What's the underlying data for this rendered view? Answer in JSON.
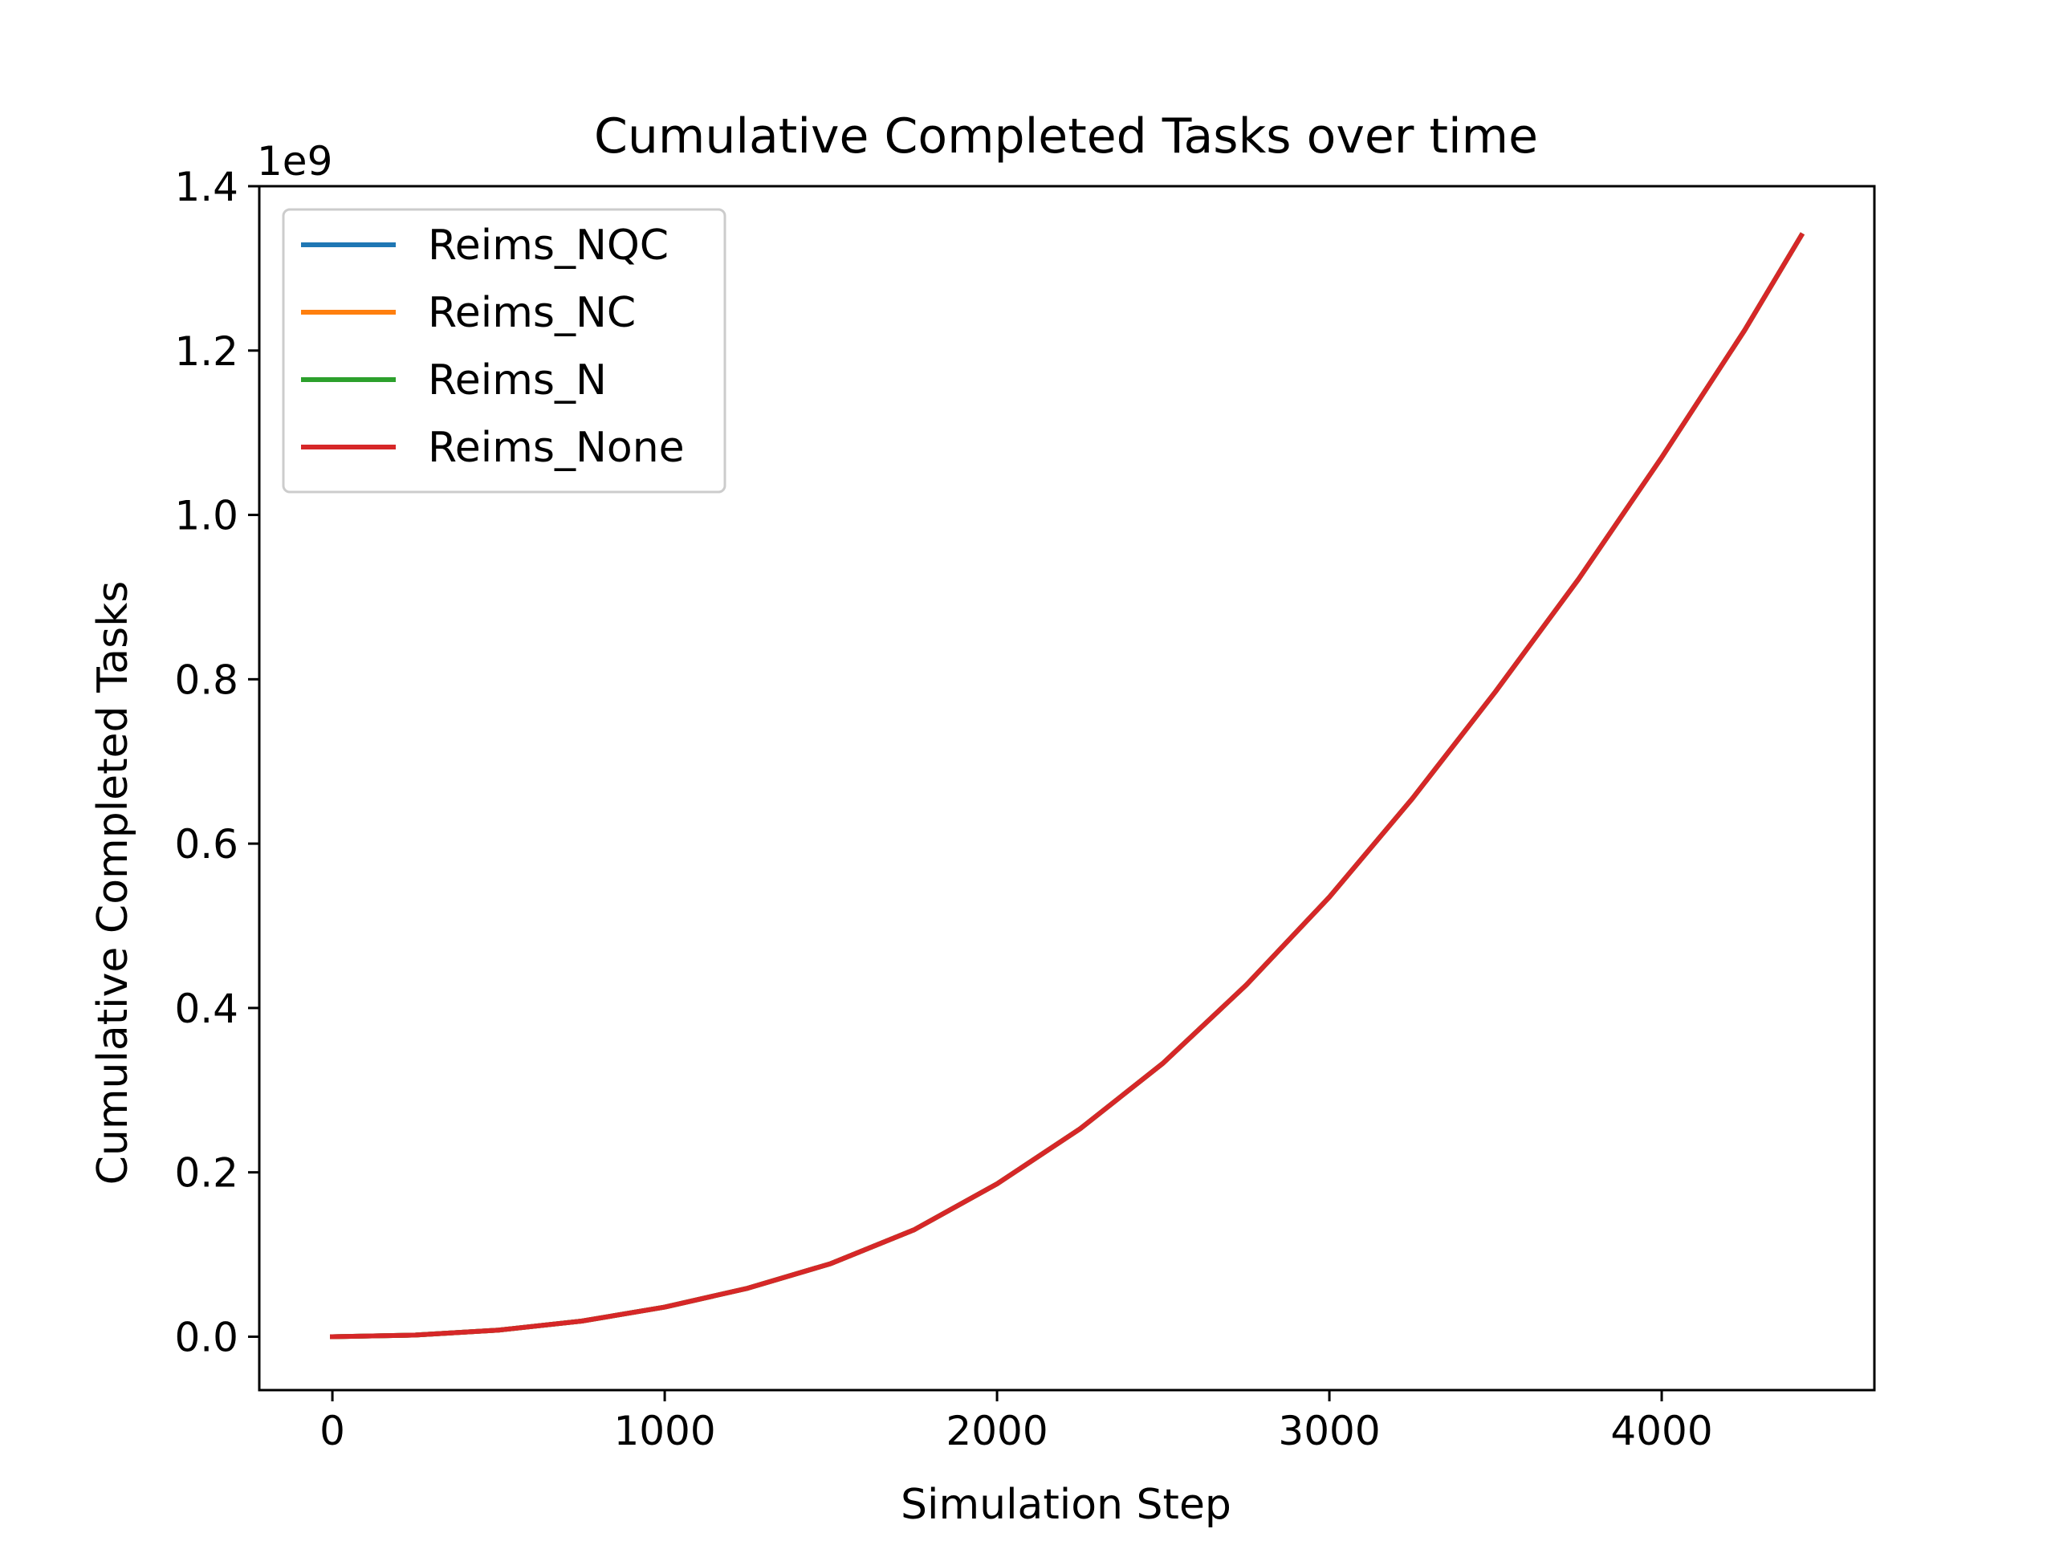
{
  "chart_data": {
    "type": "line",
    "title": "Cumulative Completed Tasks over time",
    "xlabel": "Simulation Step",
    "ylabel": "Cumulative Completed Tasks",
    "y_offset_label": "1e9",
    "xlim": [
      -220,
      4640
    ],
    "ylim": [
      -0.065,
      1.4
    ],
    "x_ticks": [
      {
        "value": 0,
        "label": "0"
      },
      {
        "value": 1000,
        "label": "1000"
      },
      {
        "value": 2000,
        "label": "2000"
      },
      {
        "value": 3000,
        "label": "3000"
      },
      {
        "value": 4000,
        "label": "4000"
      }
    ],
    "y_ticks": [
      {
        "value": 0.0,
        "label": "0.0"
      },
      {
        "value": 0.2,
        "label": "0.2"
      },
      {
        "value": 0.4,
        "label": "0.4"
      },
      {
        "value": 0.6,
        "label": "0.6"
      },
      {
        "value": 0.8,
        "label": "0.8"
      },
      {
        "value": 1.0,
        "label": "1.0"
      },
      {
        "value": 1.2,
        "label": "1.2"
      },
      {
        "value": 1.4,
        "label": "1.4"
      }
    ],
    "grid": false,
    "legend_position": "top-left",
    "x": [
      0,
      250,
      500,
      750,
      1000,
      1250,
      1500,
      1750,
      2000,
      2250,
      2500,
      2750,
      3000,
      3250,
      3500,
      3750,
      4000,
      4250,
      4420
    ],
    "series": [
      {
        "name": "Reims_NQC",
        "color": "#1f77b4",
        "values": [
          0.0,
          0.002,
          0.008,
          0.019,
          0.036,
          0.059,
          0.089,
          0.13,
          0.186,
          0.253,
          0.333,
          0.428,
          0.535,
          0.655,
          0.785,
          0.922,
          1.07,
          1.225,
          1.34
        ]
      },
      {
        "name": "Reims_NC",
        "color": "#ff7f0e",
        "values": [
          0.0,
          0.002,
          0.008,
          0.019,
          0.036,
          0.059,
          0.089,
          0.13,
          0.186,
          0.253,
          0.333,
          0.428,
          0.535,
          0.655,
          0.785,
          0.922,
          1.07,
          1.225,
          1.34
        ]
      },
      {
        "name": "Reims_N",
        "color": "#2ca02c",
        "values": [
          0.0,
          0.002,
          0.008,
          0.019,
          0.036,
          0.059,
          0.089,
          0.13,
          0.186,
          0.253,
          0.333,
          0.428,
          0.535,
          0.655,
          0.785,
          0.922,
          1.07,
          1.225,
          1.34
        ]
      },
      {
        "name": "Reims_None",
        "color": "#d62728",
        "values": [
          0.0,
          0.002,
          0.008,
          0.019,
          0.036,
          0.059,
          0.089,
          0.13,
          0.186,
          0.253,
          0.333,
          0.428,
          0.535,
          0.655,
          0.785,
          0.922,
          1.07,
          1.225,
          1.34
        ]
      }
    ]
  }
}
